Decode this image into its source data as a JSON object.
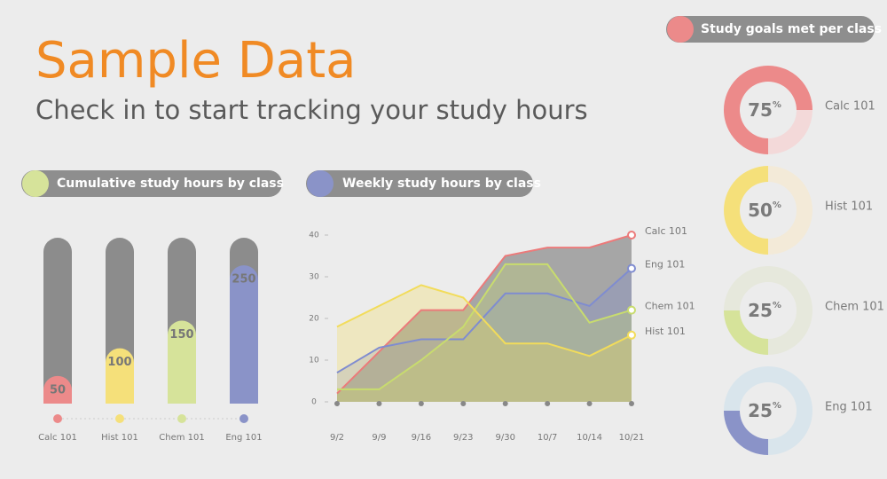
{
  "title": "Sample Data",
  "subtitle": "Check in to start tracking your study hours",
  "chart_data": [
    {
      "type": "thermometer",
      "title": "Cumulative study hours by class",
      "categories": [
        "Calc 101",
        "Hist 101",
        "Chem 101",
        "Eng 101"
      ],
      "values": [
        50,
        100,
        150,
        250
      ],
      "colors": [
        "#ec8a8a",
        "#f5e07a",
        "#d6e39a",
        "#8a93c8"
      ],
      "ylim": [
        0,
        300
      ]
    },
    {
      "type": "line",
      "title": "Weekly study hours by class",
      "x": [
        "9/2",
        "9/9",
        "9/16",
        "9/23",
        "9/30",
        "10/7",
        "10/14",
        "10/21"
      ],
      "ylim": [
        0,
        40
      ],
      "yticks": [
        0,
        10,
        20,
        30,
        40
      ],
      "series": [
        {
          "name": "Calc 101",
          "color": "#ec7a7a",
          "values": [
            2,
            12,
            22,
            22,
            35,
            37,
            37,
            40
          ]
        },
        {
          "name": "Eng 101",
          "color": "#7f8cd0",
          "values": [
            7,
            13,
            15,
            15,
            26,
            26,
            23,
            32
          ]
        },
        {
          "name": "Chem 101",
          "color": "#c8dc6e",
          "values": [
            3,
            3,
            10,
            18,
            33,
            33,
            19,
            22
          ]
        },
        {
          "name": "Hist 101",
          "color": "#f2dc5a",
          "values": [
            18,
            23,
            28,
            25,
            14,
            14,
            11,
            16
          ]
        }
      ]
    },
    {
      "type": "donut",
      "title": "Study goals met per class",
      "unit": "%",
      "categories": [
        "Calc 101",
        "Hist 101",
        "Chem 101",
        "Eng 101"
      ],
      "values": [
        75,
        50,
        25,
        25
      ],
      "colors": [
        "#ec8a8a",
        "#f5e07a",
        "#d6e39a",
        "#8a93c8"
      ],
      "track_colors": [
        "#f3d9d9",
        "#f3ead8",
        "#e6e8dc",
        "#d9e5ec"
      ]
    }
  ]
}
